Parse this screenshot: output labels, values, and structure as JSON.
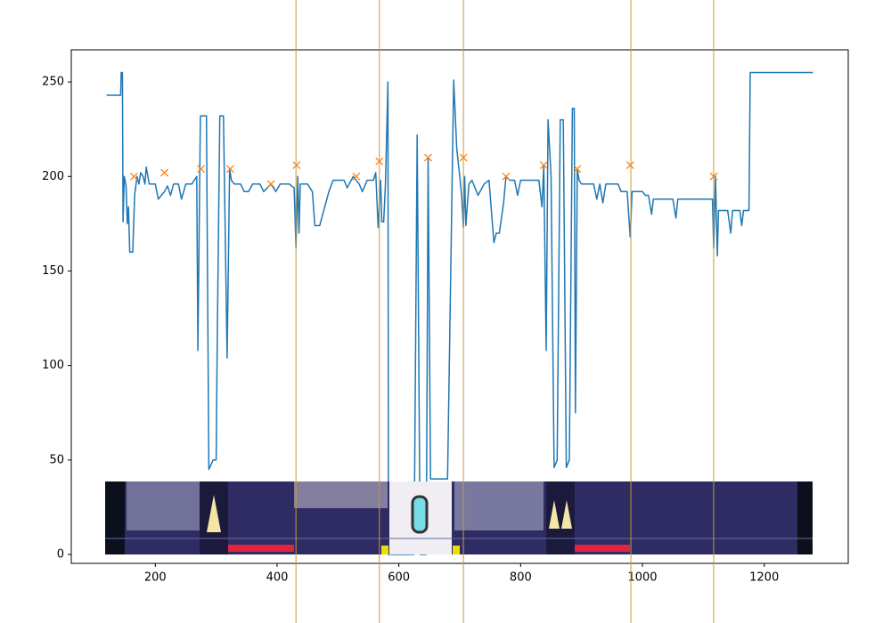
{
  "chart_data": {
    "type": "line",
    "color": "#1f77b4",
    "x": [
      120,
      143,
      144,
      146,
      147,
      149,
      152,
      154,
      156,
      157,
      158,
      163,
      166,
      170,
      173,
      176,
      180,
      183,
      185,
      190,
      200,
      205,
      210,
      215,
      220,
      225,
      230,
      238,
      243,
      250,
      260,
      268,
      270,
      274,
      284,
      288,
      295,
      300,
      302,
      306,
      312,
      318,
      322,
      325,
      330,
      340,
      346,
      353,
      360,
      372,
      378,
      390,
      398,
      405,
      420,
      428,
      431,
      434,
      436,
      438,
      450,
      458,
      462,
      470,
      475,
      480,
      485,
      492,
      510,
      515,
      525,
      535,
      540,
      548,
      558,
      562,
      566,
      570,
      572,
      575,
      578,
      582,
      583,
      625,
      630,
      635,
      645,
      648,
      652,
      680,
      690,
      695,
      700,
      703,
      706,
      708,
      710,
      715,
      720,
      730,
      740,
      748,
      752,
      756,
      760,
      765,
      772,
      776,
      782,
      790,
      795,
      800,
      830,
      835,
      838,
      842,
      845,
      850,
      855,
      860,
      865,
      870,
      875,
      880,
      885,
      888,
      890,
      893,
      896,
      900,
      920,
      925,
      930,
      935,
      940,
      960,
      965,
      975,
      980,
      983,
      990,
      1000,
      1005,
      1010,
      1015,
      1018,
      1050,
      1055,
      1058,
      1115,
      1117,
      1120,
      1123,
      1125,
      1140,
      1145,
      1148,
      1160,
      1163,
      1166,
      1175,
      1177,
      1280
    ],
    "values": [
      243,
      243,
      255,
      255,
      176,
      200,
      195,
      175,
      184,
      172,
      160,
      160,
      190,
      200,
      196,
      202,
      200,
      196,
      205,
      196,
      196,
      188,
      190,
      192,
      195,
      190,
      196,
      196,
      188,
      196,
      196,
      200,
      108,
      232,
      232,
      45,
      50,
      50,
      120,
      232,
      232,
      104,
      204,
      198,
      196,
      196,
      192,
      192,
      196,
      196,
      192,
      196,
      192,
      196,
      196,
      194,
      162,
      200,
      170,
      196,
      196,
      192,
      174,
      174,
      180,
      186,
      192,
      198,
      198,
      194,
      200,
      196,
      192,
      198,
      198,
      202,
      173,
      198,
      176,
      176,
      196,
      250,
      0,
      0,
      222,
      0,
      0,
      210,
      40,
      40,
      251,
      215,
      200,
      190,
      173,
      200,
      174,
      196,
      198,
      190,
      196,
      198,
      182,
      165,
      170,
      170,
      186,
      200,
      198,
      198,
      190,
      198,
      198,
      184,
      206,
      108,
      230,
      200,
      46,
      50,
      230,
      230,
      46,
      50,
      236,
      236,
      75,
      204,
      198,
      196,
      196,
      188,
      196,
      186,
      196,
      196,
      192,
      192,
      168,
      192,
      192,
      192,
      190,
      190,
      180,
      188,
      188,
      178,
      188,
      188,
      162,
      200,
      158,
      182,
      182,
      170,
      182,
      182,
      174,
      182,
      182,
      255,
      255
    ],
    "markers": {
      "color": "#ff7f0e",
      "x": [
        165,
        215,
        275,
        323,
        390,
        432,
        530,
        568,
        648,
        706,
        776,
        838,
        893,
        980,
        1117
      ],
      "values": [
        200,
        202,
        204,
        204,
        196,
        206,
        200,
        208,
        210,
        210,
        200,
        206,
        204,
        206,
        200
      ]
    },
    "vlines": {
      "color": "#c8993a",
      "x": [
        431,
        568,
        706,
        981,
        1117
      ]
    },
    "xlim": [
      62,
      1338
    ],
    "ylim": [
      -4.7,
      267
    ],
    "xticks": [
      200,
      400,
      600,
      800,
      1000,
      1200
    ],
    "yticks": [
      0,
      50,
      100,
      150,
      200,
      250
    ]
  }
}
